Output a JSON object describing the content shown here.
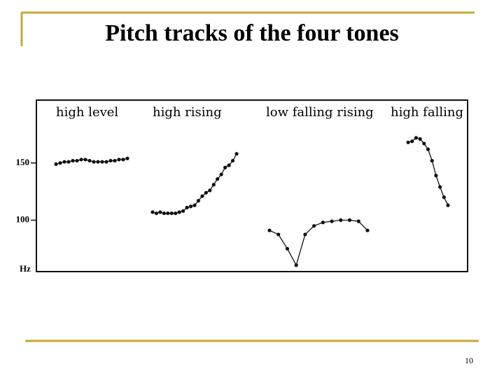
{
  "slide_title": "Pitch tracks of the four tones",
  "slide_number": 10,
  "chart_data": {
    "type": "line",
    "y_label": "Hz",
    "ylim": [
      55,
      205
    ],
    "yticks": [
      100,
      150
    ],
    "series": [
      {
        "name": "high level",
        "color": "#111111",
        "values": [
          149,
          150,
          151,
          151,
          152,
          152,
          153,
          153,
          152,
          151,
          151,
          151,
          151,
          152,
          152,
          153,
          153,
          154
        ]
      },
      {
        "name": "high rising",
        "color": "#111111",
        "values": [
          107,
          106,
          107,
          106,
          106,
          106,
          106,
          107,
          108,
          111,
          112,
          113,
          117,
          121,
          124,
          126,
          131,
          136,
          140,
          146,
          148,
          152,
          158
        ]
      },
      {
        "name": "low falling rising",
        "color": "#111111",
        "values": [
          91,
          87.5,
          75,
          60.6,
          87.5,
          95,
          98,
          99,
          100,
          100,
          99,
          91
        ]
      },
      {
        "name": "high falling",
        "color": "#111111",
        "values": [
          168,
          169,
          172,
          171,
          167,
          162,
          152,
          139,
          129,
          120,
          113
        ]
      }
    ]
  }
}
